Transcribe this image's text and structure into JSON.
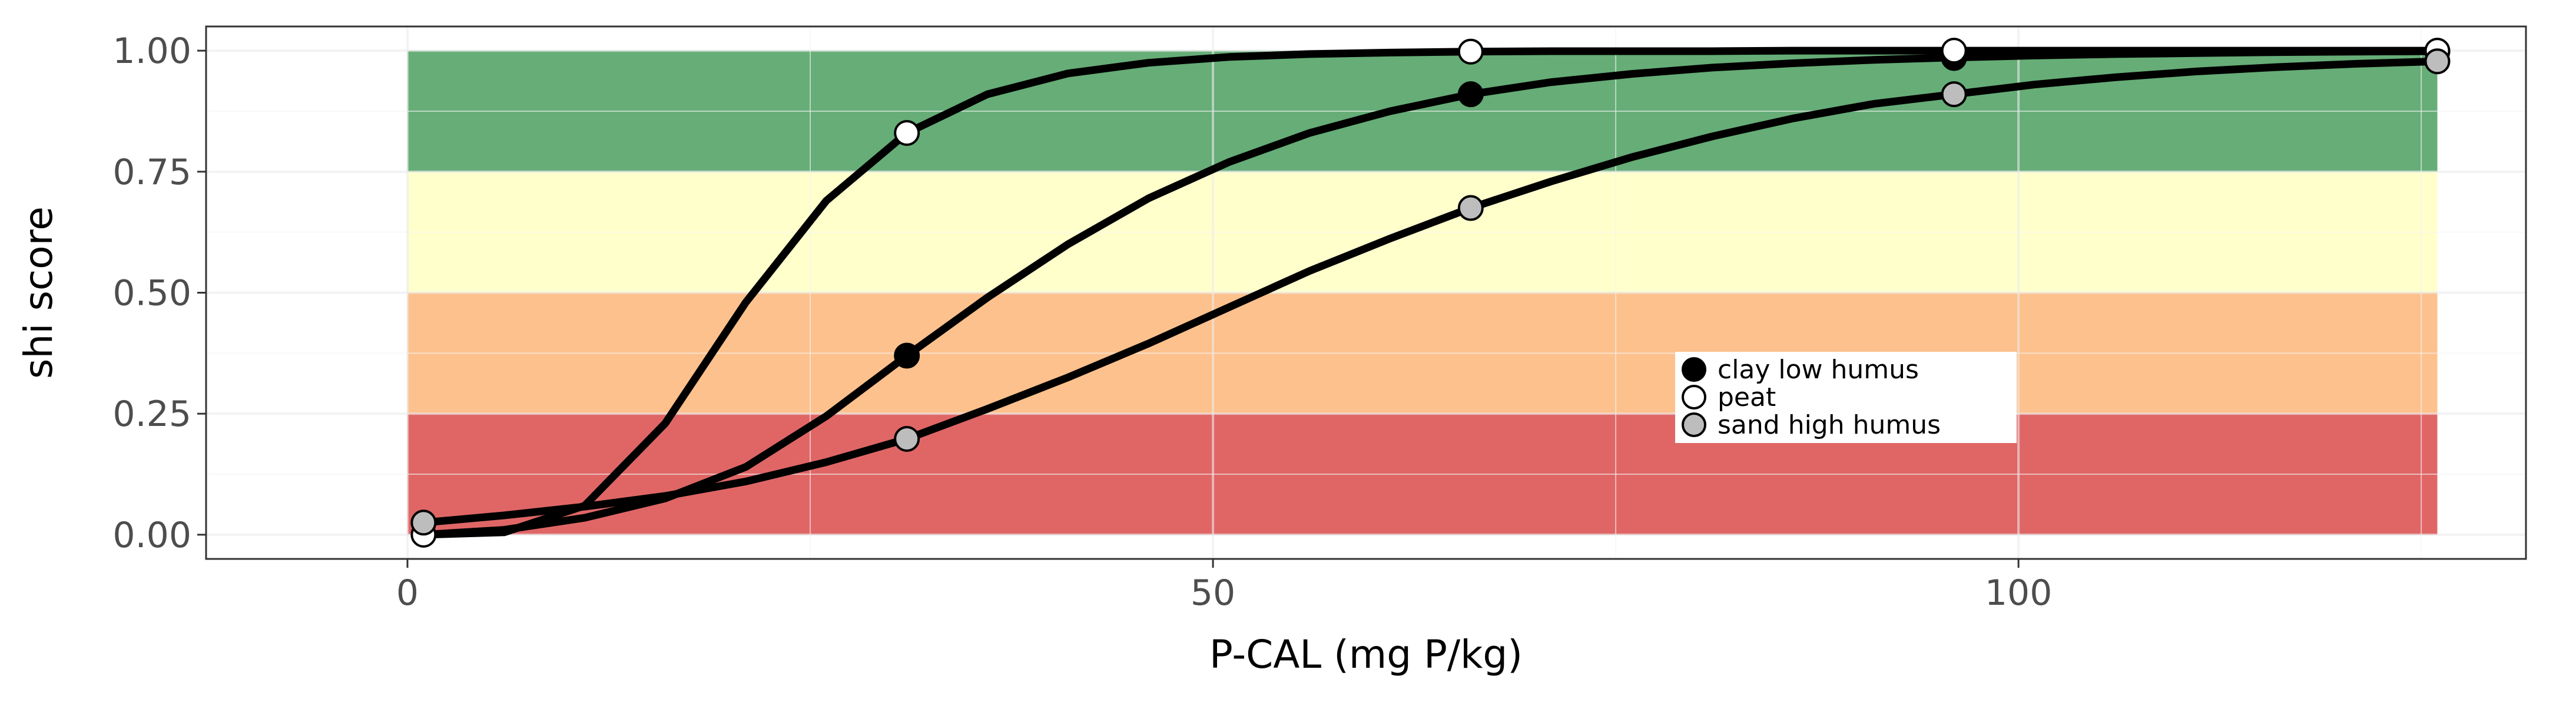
{
  "chart_data": {
    "type": "line",
    "title": "",
    "xlabel": "P-CAL (mg P/kg)",
    "ylabel": "shi score",
    "xlim": [
      -12.5,
      131.5
    ],
    "ylim": [
      -0.05,
      1.05
    ],
    "x_ticks": [
      0,
      50,
      100
    ],
    "x_tick_labels": [
      "0",
      "50",
      "100"
    ],
    "y_ticks": [
      0,
      0.25,
      0.5,
      0.75,
      1.0
    ],
    "y_tick_labels": [
      "0.00",
      "0.25",
      "0.50",
      "0.75",
      "1.00"
    ],
    "grid": true,
    "legend_position": "inside-right",
    "score_bands": [
      {
        "from": 0.0,
        "to": 0.25,
        "x_from": 0,
        "x_to": 126,
        "color": "#e06666"
      },
      {
        "from": 0.25,
        "to": 0.5,
        "x_from": 0,
        "x_to": 126,
        "color": "#fdc18d"
      },
      {
        "from": 0.5,
        "to": 0.75,
        "x_from": 0,
        "x_to": 126,
        "color": "#ffffcc"
      },
      {
        "from": 0.75,
        "to": 1.0,
        "x_from": 0,
        "x_to": 126,
        "color": "#66ad77"
      }
    ],
    "series": [
      {
        "name": "clay low humus",
        "marker_fill": "#000000",
        "x": [
          1,
          6,
          11,
          16,
          21,
          26,
          31,
          36,
          41,
          46,
          51,
          56,
          61,
          66,
          71,
          76,
          81,
          86,
          91,
          96,
          101,
          106,
          111,
          116,
          121,
          126
        ],
        "y": [
          0.0,
          0.01,
          0.035,
          0.075,
          0.14,
          0.245,
          0.37,
          0.49,
          0.6,
          0.695,
          0.77,
          0.83,
          0.875,
          0.91,
          0.935,
          0.952,
          0.965,
          0.974,
          0.981,
          0.986,
          0.99,
          0.993,
          0.995,
          0.997,
          0.998,
          0.999
        ],
        "points": [
          {
            "x": 31,
            "y": 0.37
          },
          {
            "x": 66,
            "y": 0.91
          },
          {
            "x": 96,
            "y": 0.985
          },
          {
            "x": 126,
            "y": 0.998
          }
        ]
      },
      {
        "name": "peat",
        "marker_fill": "#ffffff",
        "x": [
          1,
          6,
          11,
          16,
          21,
          26,
          31,
          36,
          41,
          46,
          51,
          56,
          61,
          66,
          71,
          76,
          81,
          86,
          91,
          96,
          101,
          106,
          111,
          116,
          121,
          126
        ],
        "y": [
          0.0,
          0.005,
          0.06,
          0.23,
          0.48,
          0.69,
          0.83,
          0.91,
          0.953,
          0.975,
          0.987,
          0.993,
          0.996,
          0.998,
          0.999,
          0.999,
          0.999,
          1.0,
          1.0,
          1.0,
          1.0,
          1.0,
          1.0,
          1.0,
          1.0,
          1.0
        ],
        "points": [
          {
            "x": 1,
            "y": 0.0
          },
          {
            "x": 31,
            "y": 0.83
          },
          {
            "x": 66,
            "y": 0.998
          },
          {
            "x": 96,
            "y": 1.0
          },
          {
            "x": 126,
            "y": 1.0
          }
        ]
      },
      {
        "name": "sand high humus",
        "marker_fill": "#bdbdbd",
        "x": [
          1,
          6,
          11,
          16,
          21,
          26,
          31,
          36,
          41,
          46,
          51,
          56,
          61,
          66,
          71,
          76,
          81,
          86,
          91,
          96,
          101,
          106,
          111,
          116,
          121,
          126
        ],
        "y": [
          0.025,
          0.04,
          0.058,
          0.08,
          0.11,
          0.15,
          0.198,
          0.26,
          0.325,
          0.395,
          0.47,
          0.545,
          0.612,
          0.675,
          0.73,
          0.78,
          0.823,
          0.86,
          0.89,
          0.91,
          0.93,
          0.945,
          0.957,
          0.966,
          0.973,
          0.978
        ],
        "points": [
          {
            "x": 1,
            "y": 0.025
          },
          {
            "x": 31,
            "y": 0.198
          },
          {
            "x": 66,
            "y": 0.675
          },
          {
            "x": 96,
            "y": 0.91
          },
          {
            "x": 126,
            "y": 0.978
          }
        ]
      }
    ],
    "colors": {
      "line": "#000000",
      "grid_major": "#ebebeb",
      "grid_minor": "#f4f4f4",
      "panel_border": "#333333",
      "tick_label": "#4d4d4d"
    }
  }
}
